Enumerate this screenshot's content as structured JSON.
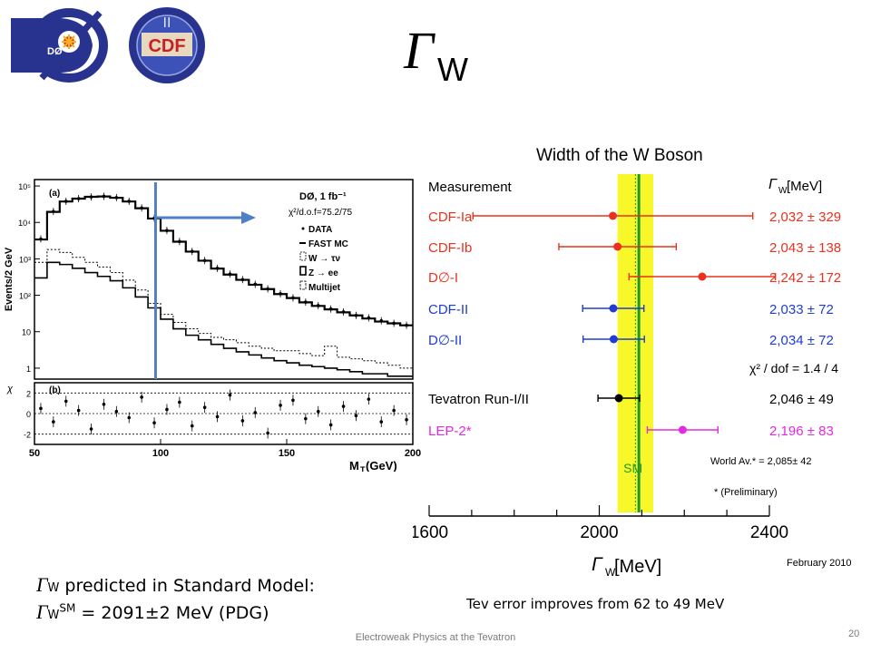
{
  "slide": {
    "title_symbol": "Γ",
    "title_sub": "W",
    "bullet1_symbol": "Γ",
    "bullet1_sub": "W",
    "bullet1_text": " predicted in Standard Model:",
    "bullet2_symbol": "Γ",
    "bullet2_sub": "W",
    "bullet2_sup": "SM",
    "bullet2_text": " = 2091±2 MeV (PDG)",
    "note": "Tev error improves from 62 to 49 MeV",
    "footer": "Electroweak Physics at the Tevatron",
    "page_number": "20",
    "logos": {
      "d0": "DØ",
      "cdf": "CDF",
      "cdf_roman": "II"
    }
  },
  "chart_data": [
    {
      "type": "histogram",
      "panel_a_label": "(a)",
      "panel_b_label": "(b)",
      "ylabel": "Events/2 GeV",
      "ylabel_b": "χ",
      "xlabel": "M",
      "xlabel_sub": "T",
      "xlabel_unit": " (GeV)",
      "xlim": [
        50,
        200
      ],
      "ylim": [
        0.5,
        150000
      ],
      "y_scale": "log",
      "x_ticks": [
        "50",
        "100",
        "150",
        "200"
      ],
      "y_ticks": [
        "10⁵",
        "10⁴",
        "10³",
        "10²",
        "10",
        "1"
      ],
      "y_ticks_b": [
        "2",
        "0",
        "-2"
      ],
      "legend_title": "DØ, 1 fb⁻¹",
      "legend_chi2": "χ²/d.o.f=75.2/75",
      "legend": [
        "DATA",
        "FAST MC",
        "W → τν",
        "Z → ee",
        "Multijet"
      ],
      "cut_line_x": 98,
      "x": [
        50,
        55,
        60,
        65,
        70,
        75,
        80,
        85,
        90,
        95,
        100,
        105,
        110,
        115,
        120,
        125,
        130,
        135,
        140,
        145,
        150,
        155,
        160,
        165,
        170,
        175,
        180,
        185,
        190,
        195,
        200
      ],
      "series": [
        {
          "name": "DATA",
          "values": [
            3500,
            20000,
            38000,
            45000,
            50000,
            52000,
            48000,
            38000,
            25000,
            13000,
            6000,
            3000,
            1600,
            900,
            550,
            380,
            270,
            200,
            150,
            110,
            85,
            65,
            52,
            42,
            35,
            28,
            24,
            20,
            17,
            15,
            13
          ]
        },
        {
          "name": "FAST MC",
          "values": [
            3400,
            19500,
            37500,
            45000,
            50500,
            51500,
            47500,
            37500,
            24500,
            12800,
            5900,
            2950,
            1580,
            890,
            540,
            370,
            265,
            195,
            148,
            108,
            84,
            64,
            51,
            41,
            34,
            28,
            23,
            19,
            17,
            15,
            13
          ]
        },
        {
          "name": "W → τν",
          "values": [
            800,
            1800,
            1500,
            1100,
            800,
            600,
            420,
            260,
            140,
            60,
            30,
            18,
            12,
            9,
            7,
            6,
            5,
            4,
            3.5,
            3,
            3,
            2.5,
            2.2,
            4,
            2,
            1.8,
            1.6,
            1.4,
            1.2,
            1,
            0.9
          ]
        },
        {
          "name": "Z → ee",
          "values": [
            300,
            800,
            700,
            550,
            420,
            330,
            250,
            160,
            90,
            45,
            22,
            12,
            8,
            6,
            4.5,
            3.5,
            2.8,
            2.3,
            1.9,
            1.6,
            1.4,
            1.2,
            1.1,
            1,
            0.9,
            0.8,
            0.7,
            0.7,
            0.6,
            0.6,
            0.5
          ]
        }
      ],
      "chi_values": [
        0.5,
        -0.8,
        1.2,
        0.3,
        -1.5,
        0.9,
        0.2,
        -0.4,
        1.6,
        -0.9,
        0.4,
        1.1,
        -1.2,
        0.6,
        -0.3,
        1.8,
        -0.7,
        0.1,
        -1.9,
        0.8,
        1.3,
        -0.5,
        0.2,
        -1.1,
        0.7,
        -0.2,
        1.4,
        -0.8,
        0.3,
        -0.6,
        0.9
      ]
    },
    {
      "type": "scatter",
      "title": "Width of the W Boson",
      "column_header_left": "Measurement",
      "column_header_right": "Γ",
      "column_header_right_sub": "W",
      "column_header_right_unit": " [MeV]",
      "xlabel": "Γ",
      "xlabel_sub": "W",
      "xlabel_unit": " [MeV]",
      "xlim": [
        1600,
        2400
      ],
      "x_ticks": [
        "1600",
        "2000",
        "2400"
      ],
      "sm_label": "SM",
      "sm_value": 2091,
      "world_average_band": [
        2043,
        2127
      ],
      "world_average_label": "World Av.* = 2,085± 42",
      "preliminary_note": "* (Preliminary)",
      "date_label": "February 2010",
      "chi2_label": "χ² / dof = 1.4 / 4",
      "measurements": [
        {
          "name": "CDF-Ia",
          "value": 2032,
          "error": 329,
          "label": "2,032 ± 329",
          "color": "#e8321e"
        },
        {
          "name": "CDF-Ib",
          "value": 2043,
          "error": 138,
          "label": "2,043 ± 138",
          "color": "#e8321e"
        },
        {
          "name": "D∅-I",
          "value": 2242,
          "error": 172,
          "label": "2,242 ± 172",
          "color": "#e8321e"
        },
        {
          "name": "CDF-II",
          "value": 2033,
          "error": 72,
          "label": "2,033 ± 72",
          "color": "#1f3cd1"
        },
        {
          "name": "D∅-II",
          "value": 2034,
          "error": 72,
          "label": "2,034 ± 72",
          "color": "#1f3cd1"
        },
        {
          "name": "Tevatron Run-I/II",
          "value": 2046,
          "error": 49,
          "label": "2,046 ± 49",
          "color": "#000000"
        },
        {
          "name": "LEP-2*",
          "value": 2196,
          "error": 83,
          "label": "2,196 ± 83",
          "color": "#e02be0"
        }
      ]
    }
  ]
}
